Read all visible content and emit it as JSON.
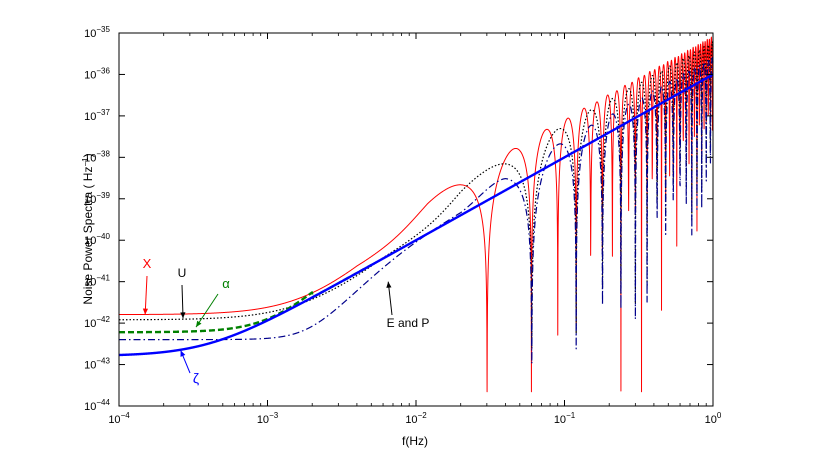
{
  "chart_data": {
    "type": "line",
    "title": "",
    "xlabel": "f(Hz)",
    "ylabel_text": "Noise Power Spectra ( Hz",
    "ylabel_exp": "−1",
    "ylabel_close": ")",
    "xscale": "log",
    "yscale": "log",
    "xlim": [
      0.0001,
      1
    ],
    "ylim": [
      1e-44,
      1e-35
    ],
    "grid": false,
    "x_tick_labels": [
      {
        "base": "10",
        "exp": "−4"
      },
      {
        "base": "10",
        "exp": "−3"
      },
      {
        "base": "10",
        "exp": "−2"
      },
      {
        "base": "10",
        "exp": "−1"
      },
      {
        "base": "10",
        "exp": "0"
      }
    ],
    "y_tick_labels": [
      {
        "base": "10",
        "exp": "−44"
      },
      {
        "base": "10",
        "exp": "−43"
      },
      {
        "base": "10",
        "exp": "−42"
      },
      {
        "base": "10",
        "exp": "−41"
      },
      {
        "base": "10",
        "exp": "−40"
      },
      {
        "base": "10",
        "exp": "−39"
      },
      {
        "base": "10",
        "exp": "−38"
      },
      {
        "base": "10",
        "exp": "−37"
      },
      {
        "base": "10",
        "exp": "−36"
      },
      {
        "base": "10",
        "exp": "−35"
      }
    ],
    "series": [
      {
        "key": "X",
        "color": "#ff0000",
        "style": "solid",
        "low_freq_level": 1.6e-42,
        "peak_level": 1e-39,
        "first_null_hz": 0.03,
        "high_freq_level": 2e-36
      },
      {
        "key": "U",
        "color": "#000000",
        "style": "dotted",
        "low_freq_level": 1.2e-42,
        "first_null_hz": 0.06,
        "high_freq_level": 1.6e-36
      },
      {
        "key": "alpha",
        "color": "#008000",
        "style": "dashed",
        "low_freq_level": 6e-43,
        "joins_zeta_near_hz": 0.002
      },
      {
        "key": "E and P",
        "color": "#00008b",
        "style": "dash-dot",
        "low_freq_level": 4e-43,
        "first_null_hz": 0.06,
        "high_freq_level": 1.6e-36
      },
      {
        "key": "zeta",
        "color": "#0000ff",
        "style": "solid thick",
        "low_freq_level": 1.6e-43,
        "slope": "power law",
        "high_freq_level": 1e-36
      }
    ],
    "annotations": [
      {
        "key": "X",
        "text": "X",
        "color": "#ff0000",
        "points_at_hz": 0.00015,
        "points_at_level": 1.6e-42
      },
      {
        "key": "U",
        "text": "U",
        "color": "#000000",
        "points_at_hz": 0.00027,
        "points_at_level": 1.3e-42
      },
      {
        "key": "alpha",
        "text": "α",
        "color": "#008000",
        "points_at_hz": 0.00033,
        "points_at_level": 8e-43
      },
      {
        "key": "E and P",
        "text": "E and P",
        "color": "#000000",
        "points_at_hz": 0.0065,
        "points_at_level": 1e-41
      },
      {
        "key": "zeta",
        "text": "ζ",
        "color": "#0000ff",
        "points_at_hz": 0.00026,
        "points_at_level": 2.2e-43
      }
    ]
  }
}
